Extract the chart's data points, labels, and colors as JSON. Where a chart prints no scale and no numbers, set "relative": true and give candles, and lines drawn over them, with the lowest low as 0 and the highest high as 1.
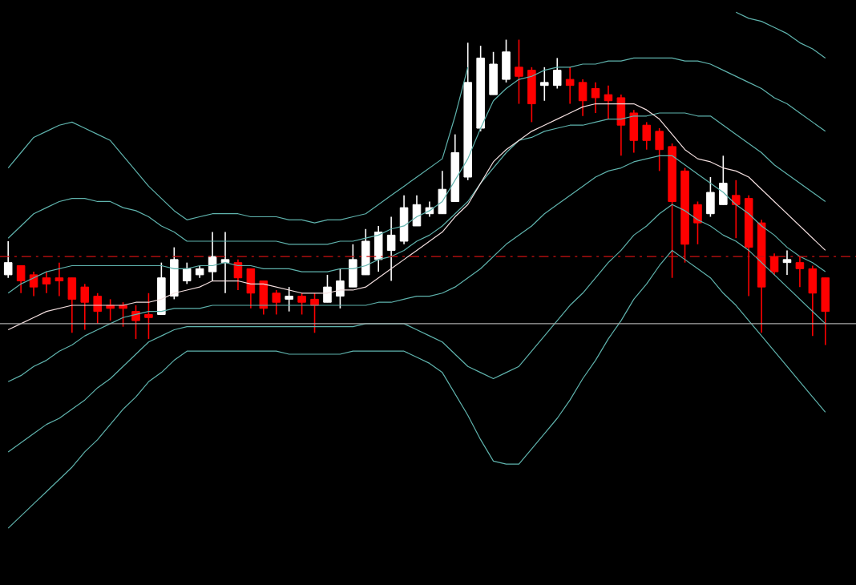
{
  "chart_data": {
    "type": "candlestick",
    "relative": true,
    "categories": [
      null,
      null,
      null,
      null,
      null,
      null,
      null,
      null,
      null,
      null,
      null,
      null,
      null,
      null,
      null,
      null,
      null,
      null,
      null,
      null,
      null,
      null,
      null,
      null,
      null,
      null,
      null,
      null,
      null,
      null,
      null,
      null,
      null,
      null,
      null,
      null,
      null,
      null,
      null,
      null,
      null,
      null,
      null,
      null,
      null,
      null,
      null,
      null,
      null,
      null,
      null,
      null,
      null,
      null,
      null,
      null,
      null,
      null,
      null,
      null,
      null,
      null,
      null,
      null,
      null
    ],
    "ohlc": [
      [
        0.23,
        0.34,
        0.22,
        0.27
      ],
      [
        0.26,
        0.26,
        0.17,
        0.21
      ],
      [
        0.23,
        0.24,
        0.16,
        0.19
      ],
      [
        0.22,
        0.24,
        0.17,
        0.2
      ],
      [
        0.22,
        0.27,
        0.16,
        0.21
      ],
      [
        0.22,
        0.22,
        0.04,
        0.15
      ],
      [
        0.19,
        0.2,
        0.05,
        0.14
      ],
      [
        0.16,
        0.17,
        0.07,
        0.11
      ],
      [
        0.13,
        0.15,
        0.08,
        0.12
      ],
      [
        0.13,
        0.14,
        0.06,
        0.12
      ],
      [
        0.11,
        0.13,
        0.02,
        0.08
      ],
      [
        0.1,
        0.17,
        0.02,
        0.09
      ],
      [
        0.1,
        0.27,
        0.1,
        0.22
      ],
      [
        0.16,
        0.32,
        0.15,
        0.28
      ],
      [
        0.21,
        0.27,
        0.2,
        0.25
      ],
      [
        0.23,
        0.26,
        0.22,
        0.25
      ],
      [
        0.24,
        0.37,
        0.21,
        0.29
      ],
      [
        0.27,
        0.37,
        0.17,
        0.28
      ],
      [
        0.27,
        0.28,
        0.18,
        0.22
      ],
      [
        0.25,
        0.25,
        0.12,
        0.17
      ],
      [
        0.21,
        0.21,
        0.1,
        0.12
      ],
      [
        0.17,
        0.18,
        0.1,
        0.14
      ],
      [
        0.15,
        0.19,
        0.11,
        0.16
      ],
      [
        0.16,
        0.17,
        0.1,
        0.14
      ],
      [
        0.15,
        0.17,
        0.04,
        0.13
      ],
      [
        0.14,
        0.23,
        0.14,
        0.19
      ],
      [
        0.16,
        0.25,
        0.12,
        0.21
      ],
      [
        0.19,
        0.33,
        0.19,
        0.28
      ],
      [
        0.23,
        0.38,
        0.23,
        0.34
      ],
      [
        0.28,
        0.39,
        0.24,
        0.37
      ],
      [
        0.31,
        0.42,
        0.21,
        0.36
      ],
      [
        0.34,
        0.49,
        0.33,
        0.45
      ],
      [
        0.39,
        0.49,
        0.39,
        0.46
      ],
      [
        0.43,
        0.47,
        0.42,
        0.45
      ],
      [
        0.43,
        0.57,
        0.43,
        0.51
      ],
      [
        0.47,
        0.69,
        0.47,
        0.63
      ],
      [
        0.55,
        0.99,
        0.54,
        0.86
      ],
      [
        0.71,
        0.98,
        0.7,
        0.94
      ],
      [
        0.82,
        0.96,
        0.82,
        0.92
      ],
      [
        0.87,
        1.0,
        0.86,
        0.96
      ],
      [
        0.91,
        1.0,
        0.79,
        0.88
      ],
      [
        0.9,
        0.91,
        0.73,
        0.79
      ],
      [
        0.85,
        0.91,
        0.8,
        0.86
      ],
      [
        0.85,
        0.94,
        0.84,
        0.9
      ],
      [
        0.87,
        0.91,
        0.79,
        0.85
      ],
      [
        0.86,
        0.87,
        0.75,
        0.8
      ],
      [
        0.84,
        0.86,
        0.76,
        0.81
      ],
      [
        0.82,
        0.85,
        0.74,
        0.8
      ],
      [
        0.81,
        0.82,
        0.62,
        0.72
      ],
      [
        0.76,
        0.77,
        0.63,
        0.67
      ],
      [
        0.72,
        0.73,
        0.64,
        0.67
      ],
      [
        0.7,
        0.71,
        0.57,
        0.64
      ],
      [
        0.65,
        0.66,
        0.22,
        0.47
      ],
      [
        0.57,
        0.58,
        0.27,
        0.33
      ],
      [
        0.46,
        0.47,
        0.33,
        0.4
      ],
      [
        0.43,
        0.55,
        0.42,
        0.5
      ],
      [
        0.46,
        0.62,
        0.46,
        0.53
      ],
      [
        0.49,
        0.54,
        0.35,
        0.46
      ],
      [
        0.48,
        0.49,
        0.16,
        0.32
      ],
      [
        0.4,
        0.41,
        0.04,
        0.19
      ],
      [
        0.29,
        0.3,
        0.23,
        0.24
      ],
      [
        0.27,
        0.31,
        0.23,
        0.28
      ],
      [
        0.27,
        0.29,
        0.19,
        0.25
      ],
      [
        0.25,
        0.26,
        0.03,
        0.17
      ],
      [
        0.22,
        0.22,
        0.0,
        0.11
      ]
    ],
    "colors": [
      "#ffffff",
      "#ff0000",
      "#ff0000",
      "#ff0000",
      "#ff0000",
      "#ff0000",
      "#ff0000",
      "#ff0000",
      "#ff0000",
      "#ff0000",
      "#ff0000",
      "#ff0000",
      "#ffffff",
      "#ffffff",
      "#ffffff",
      "#ffffff",
      "#ffffff",
      "#ffffff",
      "#ff0000",
      "#ff0000",
      "#ff0000",
      "#ff0000",
      "#ffffff",
      "#ff0000",
      "#ff0000",
      "#ffffff",
      "#ffffff",
      "#ffffff",
      "#ffffff",
      "#ffffff",
      "#ffffff",
      "#ffffff",
      "#ffffff",
      "#ffffff",
      "#ffffff",
      "#ffffff",
      "#ffffff",
      "#ffffff",
      "#ffffff",
      "#ffffff",
      "#ff0000",
      "#ff0000",
      "#ffffff",
      "#ffffff",
      "#ff0000",
      "#ff0000",
      "#ff0000",
      "#ff0000",
      "#ff0000",
      "#ff0000",
      "#ff0000",
      "#ff0000",
      "#ff0000",
      "#ff0000",
      "#ff0000",
      "#ffffff",
      "#ffffff",
      "#ff0000",
      "#ff0000",
      "#ff0000",
      "#ff0000",
      "#ffffff",
      "#ff0000",
      "#ff0000",
      "#ff0000"
    ],
    "series": [
      {
        "type": "line",
        "color": "#5fb3ad",
        "values": [
          0.58,
          0.63,
          0.68,
          0.7,
          0.72,
          0.73,
          0.71,
          0.69,
          0.67,
          0.62,
          0.57,
          0.52,
          0.48,
          0.44,
          0.41,
          0.42,
          0.43,
          0.43,
          0.43,
          0.42,
          0.42,
          0.42,
          0.41,
          0.41,
          0.4,
          0.41,
          0.41,
          0.42,
          0.43,
          0.46,
          0.49,
          0.52,
          0.55,
          0.58,
          0.61,
          0.75,
          0.91,
          null,
          null,
          null,
          null,
          null,
          null,
          null,
          null,
          null,
          null,
          null,
          null,
          null,
          null,
          null,
          null,
          null,
          null,
          null,
          null,
          1.09,
          1.07,
          1.06,
          1.04,
          1.02,
          0.99,
          0.97,
          0.94
        ]
      },
      {
        "type": "line",
        "color": "#5fb3ad",
        "values": [
          0.35,
          0.39,
          0.43,
          0.45,
          0.47,
          0.48,
          0.48,
          0.47,
          0.47,
          0.45,
          0.44,
          0.42,
          0.39,
          0.37,
          0.34,
          0.34,
          0.34,
          0.34,
          0.34,
          0.34,
          0.34,
          0.34,
          0.33,
          0.33,
          0.33,
          0.33,
          0.34,
          0.34,
          0.35,
          0.36,
          0.38,
          0.39,
          0.42,
          0.44,
          0.47,
          0.54,
          0.61,
          0.71,
          0.8,
          0.84,
          0.87,
          0.88,
          0.9,
          0.91,
          0.91,
          0.92,
          0.92,
          0.93,
          0.93,
          0.94,
          0.94,
          0.94,
          0.94,
          0.93,
          0.93,
          0.92,
          0.9,
          0.88,
          0.86,
          0.84,
          0.81,
          0.79,
          0.76,
          0.73,
          0.7
        ]
      },
      {
        "type": "line",
        "color": "#5fb3ad",
        "values": [
          0.17,
          0.2,
          0.22,
          0.24,
          0.25,
          0.26,
          0.26,
          0.26,
          0.26,
          0.26,
          0.26,
          0.26,
          0.26,
          0.25,
          0.25,
          0.26,
          0.26,
          0.27,
          0.26,
          0.26,
          0.25,
          0.25,
          0.25,
          0.24,
          0.24,
          0.24,
          0.25,
          0.25,
          0.26,
          0.28,
          0.29,
          0.31,
          0.34,
          0.36,
          0.39,
          0.43,
          0.47,
          0.53,
          0.58,
          0.63,
          0.67,
          0.68,
          0.7,
          0.71,
          0.72,
          0.72,
          0.73,
          0.74,
          0.74,
          0.75,
          0.75,
          0.76,
          0.76,
          0.76,
          0.75,
          0.75,
          0.72,
          0.69,
          0.66,
          0.63,
          0.59,
          0.56,
          0.53,
          0.5,
          0.47
        ]
      },
      {
        "type": "line",
        "color": "#f2dede",
        "values": [
          0.05,
          0.07,
          0.09,
          0.11,
          0.12,
          0.13,
          0.13,
          0.13,
          0.13,
          0.13,
          0.14,
          0.14,
          0.15,
          0.17,
          0.18,
          0.19,
          0.21,
          0.21,
          0.21,
          0.2,
          0.2,
          0.19,
          0.18,
          0.17,
          0.17,
          0.17,
          0.18,
          0.18,
          0.19,
          0.22,
          0.25,
          0.28,
          0.31,
          0.34,
          0.37,
          0.42,
          0.46,
          0.53,
          0.6,
          0.64,
          0.67,
          0.7,
          0.72,
          0.74,
          0.76,
          0.78,
          0.79,
          0.79,
          0.79,
          0.79,
          0.77,
          0.74,
          0.69,
          0.64,
          0.61,
          0.6,
          0.58,
          0.57,
          0.55,
          0.51,
          0.47,
          0.43,
          0.39,
          0.35,
          0.31
        ]
      },
      {
        "type": "line",
        "color": "#5fb3ad",
        "values": [
          -0.12,
          -0.1,
          -0.07,
          -0.05,
          -0.02,
          0.0,
          0.03,
          0.05,
          0.07,
          0.09,
          0.1,
          0.11,
          0.11,
          0.12,
          0.12,
          0.12,
          0.13,
          0.13,
          0.13,
          0.13,
          0.13,
          0.13,
          0.13,
          0.13,
          0.13,
          0.13,
          0.13,
          0.13,
          0.13,
          0.14,
          0.14,
          0.15,
          0.16,
          0.16,
          0.17,
          0.19,
          0.22,
          0.25,
          0.29,
          0.33,
          0.36,
          0.39,
          0.43,
          0.46,
          0.49,
          0.52,
          0.55,
          0.57,
          0.58,
          0.6,
          0.61,
          0.62,
          0.62,
          0.59,
          0.56,
          0.53,
          0.5,
          0.46,
          0.43,
          0.39,
          0.36,
          0.32,
          0.29,
          0.27,
          0.24
        ]
      },
      {
        "type": "line",
        "color": "#5fb3ad",
        "values": [
          -0.35,
          -0.32,
          -0.29,
          -0.26,
          -0.24,
          -0.21,
          -0.18,
          -0.14,
          -0.11,
          -0.07,
          -0.03,
          0.01,
          0.03,
          0.05,
          0.06,
          0.06,
          0.06,
          0.06,
          0.06,
          0.06,
          0.06,
          0.06,
          0.06,
          0.06,
          0.06,
          0.06,
          0.06,
          0.06,
          0.07,
          0.07,
          0.07,
          0.07,
          0.05,
          0.03,
          0.01,
          -0.03,
          -0.07,
          -0.09,
          -0.11,
          -0.09,
          -0.07,
          -0.02,
          0.03,
          0.08,
          0.13,
          0.17,
          0.22,
          0.27,
          0.31,
          0.36,
          0.39,
          0.43,
          0.46,
          0.44,
          0.41,
          0.39,
          0.36,
          0.34,
          0.31,
          0.27,
          0.23,
          0.19,
          0.15,
          0.11,
          0.07
        ]
      },
      {
        "type": "line",
        "color": "#5fb3ad",
        "values": [
          -0.6,
          -0.56,
          -0.52,
          -0.48,
          -0.44,
          -0.4,
          -0.35,
          -0.31,
          -0.26,
          -0.21,
          -0.17,
          -0.12,
          -0.09,
          -0.05,
          -0.02,
          -0.02,
          -0.02,
          -0.02,
          -0.02,
          -0.02,
          -0.02,
          -0.02,
          -0.03,
          -0.03,
          -0.03,
          -0.03,
          -0.03,
          -0.02,
          -0.02,
          -0.02,
          -0.02,
          -0.02,
          -0.04,
          -0.06,
          -0.09,
          -0.16,
          -0.23,
          -0.31,
          -0.38,
          -0.39,
          -0.39,
          -0.34,
          -0.29,
          -0.24,
          -0.18,
          -0.11,
          -0.05,
          0.02,
          0.08,
          0.15,
          0.2,
          0.26,
          0.31,
          0.28,
          0.25,
          0.22,
          0.17,
          0.13,
          0.08,
          0.03,
          -0.02,
          -0.07,
          -0.12,
          -0.17,
          -0.22
        ]
      }
    ],
    "ref_lines": [
      {
        "axis": "y",
        "value": 0.29,
        "color": "#cc1111",
        "line_style": "dashed"
      },
      {
        "axis": "y",
        "value": 0.07,
        "color": "#a8a8a8",
        "line_style": "solid"
      }
    ]
  }
}
